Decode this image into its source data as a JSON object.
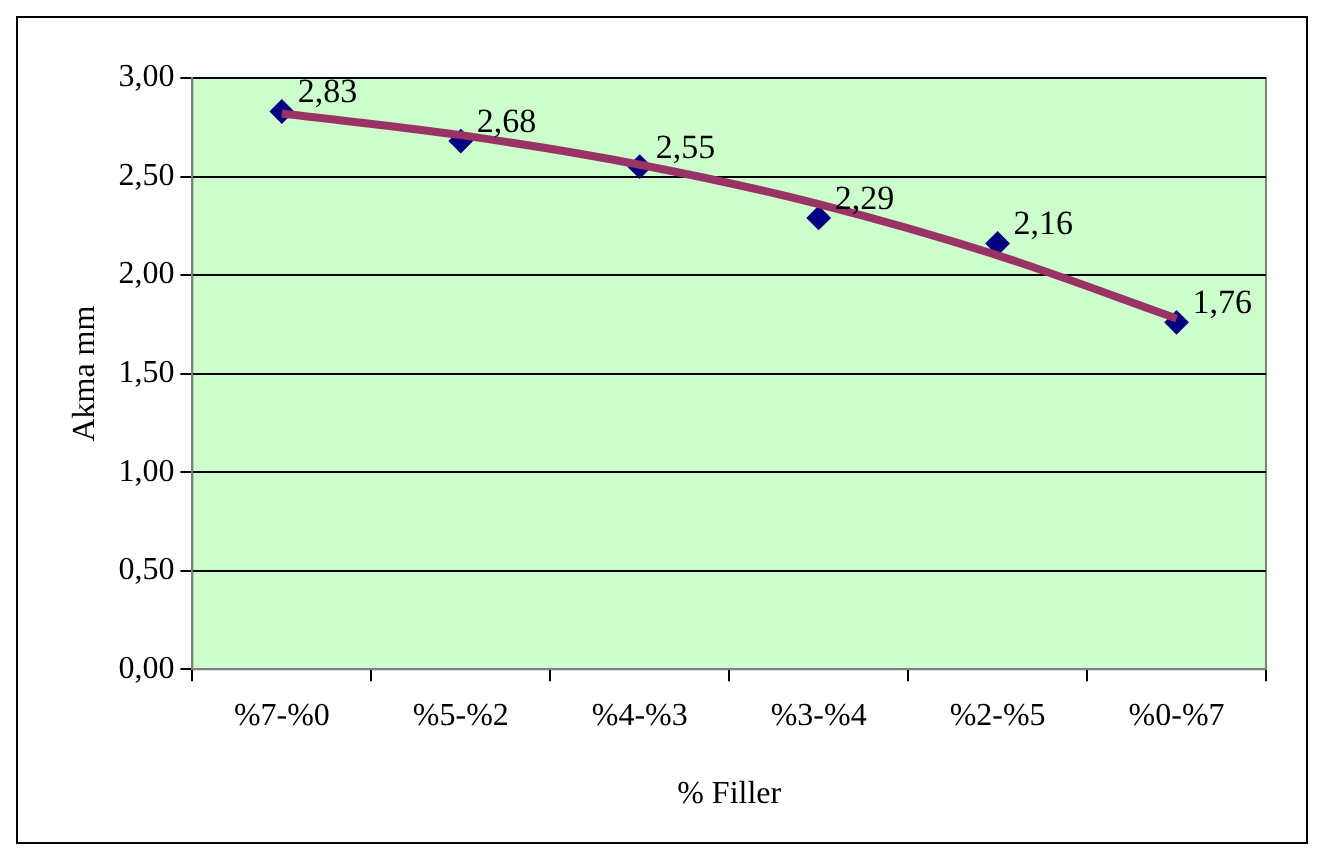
{
  "chart_data": {
    "type": "scatter",
    "xlabel": "% Filler",
    "ylabel": "Akma mm",
    "categories": [
      "%7-%0",
      "%5-%2",
      "%4-%3",
      "%3-%4",
      "%2-%5",
      "%0-%7"
    ],
    "ylim": [
      0,
      3
    ],
    "yticks": [
      {
        "value": 0,
        "label": "0,00"
      },
      {
        "value": 0.5,
        "label": "0,50"
      },
      {
        "value": 1,
        "label": "1,00"
      },
      {
        "value": 1.5,
        "label": "1,50"
      },
      {
        "value": 2,
        "label": "2,00"
      },
      {
        "value": 2.5,
        "label": "2,50"
      },
      {
        "value": 3,
        "label": "3,00"
      }
    ],
    "grid": "y",
    "legend": false,
    "marker": "diamond",
    "series": [
      {
        "type": "line",
        "color": "#993366",
        "values": [
          2.82,
          2.71,
          2.56,
          2.36,
          2.1,
          1.78
        ],
        "marker": "none"
      },
      {
        "type": "scatter",
        "color": "#000080",
        "values": [
          2.83,
          2.68,
          2.55,
          2.29,
          2.16,
          1.76
        ],
        "value_labels": [
          "2,83",
          "2,68",
          "2,55",
          "2,29",
          "2,16",
          "1,76"
        ]
      }
    ]
  }
}
